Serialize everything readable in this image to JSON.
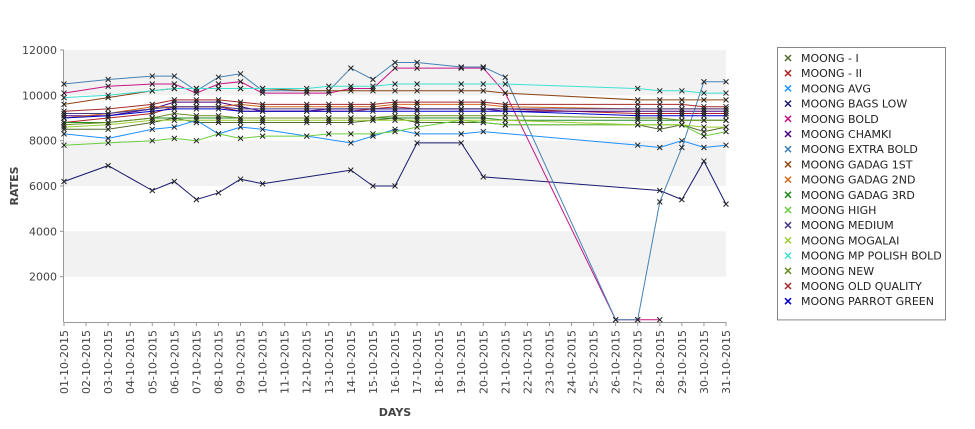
{
  "chart_data": {
    "type": "line",
    "xlabel": "DAYS",
    "ylabel": "RATES",
    "ylim": [
      0,
      12000
    ],
    "yticks": [
      2000,
      4000,
      6000,
      8000,
      10000,
      12000
    ],
    "grid": "alternating horizontal bands",
    "legend_position": "right",
    "categories": [
      "01-10-2015",
      "02-10-2015",
      "03-10-2015",
      "04-10-2015",
      "05-10-2015",
      "06-10-2015",
      "07-10-2015",
      "08-10-2015",
      "09-10-2015",
      "10-10-2015",
      "11-10-2015",
      "12-10-2015",
      "13-10-2015",
      "14-10-2015",
      "15-10-2015",
      "16-10-2015",
      "17-10-2015",
      "18-10-2015",
      "19-10-2015",
      "20-10-2015",
      "21-10-2015",
      "22-10-2015",
      "23-10-2015",
      "24-10-2015",
      "25-10-2015",
      "26-10-2015",
      "27-10-2015",
      "28-10-2015",
      "29-10-2015",
      "30-10-2015",
      "31-10-2015"
    ],
    "series": [
      {
        "name": "MOONG - I",
        "color": "#556b2f",
        "values": [
          8500,
          null,
          8500,
          null,
          8800,
          9000,
          8800,
          8800,
          8800,
          8800,
          null,
          8800,
          8800,
          8800,
          8900,
          9000,
          8800,
          null,
          8800,
          8800,
          8700,
          null,
          null,
          null,
          null,
          null,
          8700,
          8500,
          8700,
          8400,
          8600
        ]
      },
      {
        "name": "MOONG - II",
        "color": "#b22222",
        "values": [
          8800,
          null,
          9000,
          null,
          9200,
          9500,
          9500,
          9500,
          9300,
          9300,
          null,
          9300,
          9300,
          9300,
          9400,
          9500,
          9400,
          null,
          9400,
          9400,
          9400,
          null,
          null,
          null,
          null,
          null,
          9200,
          9200,
          9200,
          9200,
          9200
        ]
      },
      {
        "name": "MOONG AVG",
        "color": "#1e90ff",
        "values": [
          8300,
          null,
          8100,
          null,
          8500,
          8600,
          8900,
          8300,
          8600,
          8500,
          null,
          null,
          null,
          7900,
          8200,
          8500,
          8300,
          null,
          8300,
          8400,
          null,
          null,
          null,
          null,
          null,
          null,
          7800,
          7700,
          8000,
          7700,
          7800
        ]
      },
      {
        "name": "MOONG BAGS LOW",
        "color": "#191970",
        "values": [
          6200,
          null,
          6900,
          null,
          5800,
          6200,
          5400,
          5700,
          6300,
          6100,
          null,
          null,
          null,
          6700,
          6000,
          6000,
          7900,
          null,
          7900,
          6400,
          null,
          null,
          null,
          null,
          null,
          null,
          null,
          5800,
          5400,
          7100,
          5200
        ]
      },
      {
        "name": "MOONG BOLD",
        "color": "#c71585",
        "values": [
          10100,
          null,
          10400,
          null,
          10500,
          10500,
          10100,
          10500,
          10600,
          10100,
          null,
          10100,
          10100,
          10300,
          10300,
          11200,
          11200,
          null,
          11200,
          11200,
          10100,
          null,
          null,
          null,
          null,
          100,
          100,
          100,
          null,
          null,
          null
        ]
      },
      {
        "name": "MOONG CHAMKI",
        "color": "#4b0082",
        "values": [
          9100,
          null,
          9100,
          null,
          9400,
          9700,
          9700,
          9700,
          9500,
          9300,
          null,
          9300,
          9400,
          9400,
          9400,
          9400,
          9400,
          null,
          9400,
          9400,
          9300,
          null,
          null,
          null,
          null,
          null,
          9300,
          9300,
          9300,
          9300,
          9300
        ]
      },
      {
        "name": "MOONG EXTRA BOLD",
        "color": "#4682b4",
        "values": [
          10500,
          null,
          10700,
          null,
          10850,
          10850,
          10200,
          10800,
          10950,
          10200,
          null,
          10200,
          10200,
          11200,
          10700,
          11450,
          11450,
          null,
          11250,
          11250,
          10800,
          null,
          null,
          null,
          null,
          100,
          100,
          5300,
          7700,
          10600,
          10600
        ]
      },
      {
        "name": "MOONG GADAG 1ST",
        "color": "#8b4513",
        "values": [
          9600,
          null,
          9900,
          null,
          10200,
          10300,
          10300,
          10300,
          10300,
          10300,
          null,
          10200,
          10200,
          10200,
          10200,
          10200,
          10200,
          null,
          10200,
          10200,
          10100,
          null,
          null,
          null,
          null,
          null,
          9800,
          9800,
          9800,
          9800,
          9800
        ]
      },
      {
        "name": "MOONG GADAG 2ND",
        "color": "#d2691e",
        "values": [
          9000,
          null,
          9200,
          null,
          9500,
          9500,
          9500,
          9500,
          9600,
          9500,
          null,
          9500,
          9500,
          9500,
          9500,
          9600,
          9600,
          null,
          9600,
          9600,
          9500,
          null,
          null,
          null,
          null,
          null,
          9400,
          9400,
          9400,
          9400,
          9400
        ]
      },
      {
        "name": "MOONG GADAG 3RD",
        "color": "#228b22",
        "values": [
          8800,
          null,
          8800,
          null,
          9000,
          9000,
          9000,
          9000,
          9000,
          9000,
          null,
          9000,
          9000,
          9000,
          9000,
          9000,
          9000,
          null,
          9000,
          9000,
          8900,
          null,
          null,
          null,
          null,
          null,
          8900,
          8900,
          8900,
          8900,
          8900
        ]
      },
      {
        "name": "MOONG HIGH",
        "color": "#6bcd3e",
        "values": [
          7800,
          null,
          7900,
          null,
          8000,
          8100,
          8000,
          8300,
          8100,
          8200,
          null,
          8200,
          8300,
          8300,
          8300,
          8400,
          8600,
          null,
          8900,
          8800,
          8700,
          null,
          null,
          null,
          null,
          null,
          8700,
          8700,
          8700,
          8200,
          8400
        ]
      },
      {
        "name": "MOONG MEDIUM",
        "color": "#483d8b",
        "values": [
          9200,
          null,
          9200,
          null,
          9400,
          9500,
          9500,
          9500,
          9400,
          9400,
          null,
          9400,
          9400,
          9400,
          9400,
          9400,
          9400,
          null,
          9400,
          9400,
          9400,
          null,
          null,
          null,
          null,
          null,
          9400,
          9400,
          9400,
          9400,
          9400
        ]
      },
      {
        "name": "MOONG MOGALAI",
        "color": "#9acd32",
        "values": [
          8600,
          null,
          8700,
          null,
          8900,
          8900,
          8900,
          8900,
          8900,
          8900,
          null,
          8900,
          8900,
          8900,
          8900,
          8900,
          8900,
          null,
          8900,
          8900,
          8900,
          null,
          null,
          null,
          null,
          null,
          8700,
          8700,
          8700,
          8600,
          8600
        ]
      },
      {
        "name": "MOONG MP POLISH BOLD",
        "color": "#40e0d0",
        "values": [
          9900,
          null,
          10000,
          null,
          10200,
          10300,
          10300,
          10300,
          10300,
          10300,
          null,
          10300,
          10400,
          10400,
          10400,
          10500,
          10500,
          null,
          10500,
          10500,
          10500,
          null,
          null,
          null,
          null,
          null,
          10300,
          10200,
          10200,
          10100,
          10100
        ]
      },
      {
        "name": "MOONG NEW",
        "color": "#6b8e23",
        "values": [
          8700,
          null,
          8800,
          null,
          9000,
          9200,
          9100,
          9100,
          9000,
          9000,
          null,
          9000,
          9000,
          9000,
          9000,
          9100,
          9100,
          null,
          9100,
          9100,
          9100,
          null,
          null,
          null,
          null,
          null,
          9000,
          9000,
          8900,
          8900,
          8900
        ]
      },
      {
        "name": "MOONG OLD QUALITY",
        "color": "#a52a2a",
        "values": [
          9300,
          null,
          9400,
          null,
          9600,
          9800,
          9800,
          9800,
          9700,
          9600,
          null,
          9600,
          9600,
          9600,
          9600,
          9700,
          9700,
          null,
          9700,
          9700,
          9600,
          null,
          null,
          null,
          null,
          null,
          9600,
          9600,
          9600,
          9500,
          9500
        ]
      },
      {
        "name": "MOONG PARROT GREEN",
        "color": "#0000cd",
        "values": [
          9000,
          null,
          9100,
          null,
          9300,
          9400,
          9400,
          9400,
          9300,
          9300,
          null,
          9300,
          9300,
          9300,
          9300,
          9300,
          9300,
          null,
          9300,
          9300,
          9300,
          null,
          null,
          null,
          null,
          null,
          9100,
          9100,
          9100,
          9100,
          9100
        ]
      }
    ]
  }
}
